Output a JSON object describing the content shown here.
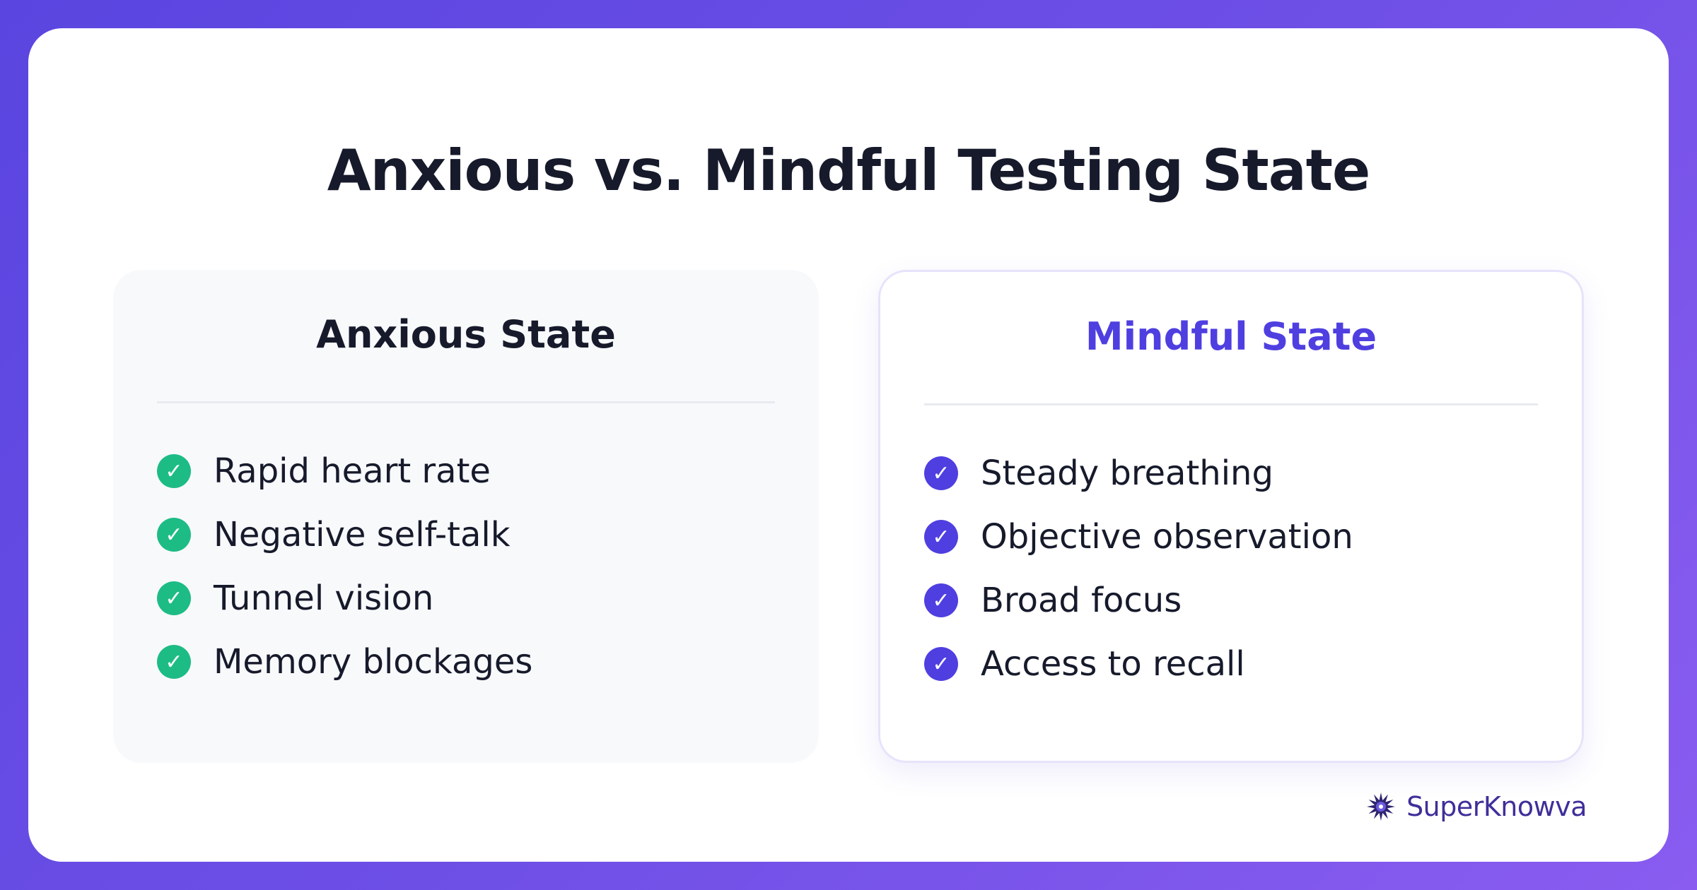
{
  "title": "Anxious vs. Mindful Testing State",
  "panels": {
    "anxious": {
      "heading": "Anxious State",
      "items": [
        "Rapid heart rate",
        "Negative self-talk",
        "Tunnel vision",
        "Memory blockages"
      ],
      "check_color": "#1dbc85"
    },
    "mindful": {
      "heading": "Mindful State",
      "items": [
        "Steady breathing",
        "Objective observation",
        "Broad focus",
        "Access to recall"
      ],
      "check_color": "#4f3fe0"
    }
  },
  "check_icon": "✓",
  "brand": {
    "name": "SuperKnowva",
    "logo_icon": "starburst-logo"
  },
  "colors": {
    "background_start": "#5a45e0",
    "background_end": "#8a5cf0",
    "accent": "#4f3fe0",
    "success": "#1dbc85",
    "text": "#161a2b"
  }
}
